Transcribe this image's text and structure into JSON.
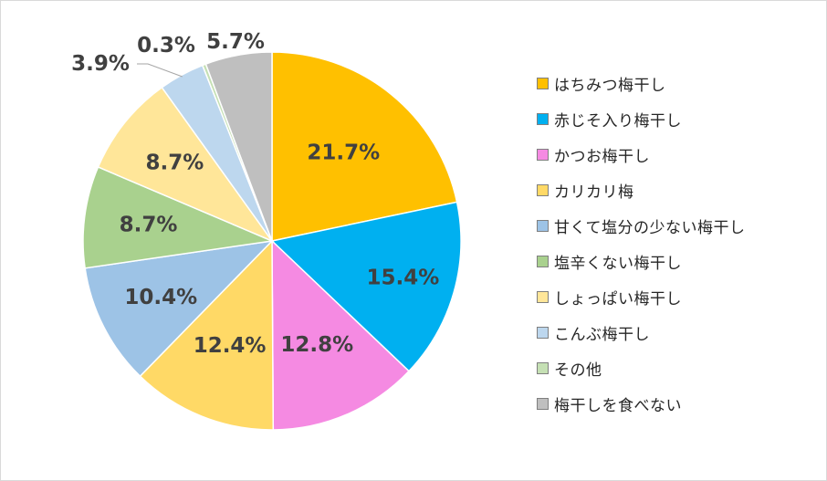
{
  "chart_data": {
    "type": "pie",
    "categories": [
      "はちみつ梅干し",
      "赤じそ入り梅干し",
      "かつお梅干し",
      "カリカリ梅",
      "甘くて塩分の少ない梅干し",
      "塩辛くない梅干し",
      "しょっぱい梅干し",
      "こんぶ梅干し",
      "その他",
      "梅干しを食べない"
    ],
    "values": [
      21.7,
      15.4,
      12.8,
      12.4,
      10.4,
      8.7,
      8.7,
      3.9,
      0.3,
      5.7
    ],
    "labels": [
      "21.7%",
      "15.4%",
      "12.8%",
      "12.4%",
      "10.4%",
      "8.7%",
      "8.7%",
      "3.9%",
      "0.3%",
      "5.7%"
    ],
    "colors": [
      "#FFC000",
      "#00B0F0",
      "#F58AE2",
      "#FFD966",
      "#9DC3E6",
      "#A9D18E",
      "#FFE699",
      "#BDD7EE",
      "#C5E0B4",
      "#BFBFBF"
    ],
    "legend_position": "right",
    "start_angle": "12 o'clock, clockwise"
  }
}
